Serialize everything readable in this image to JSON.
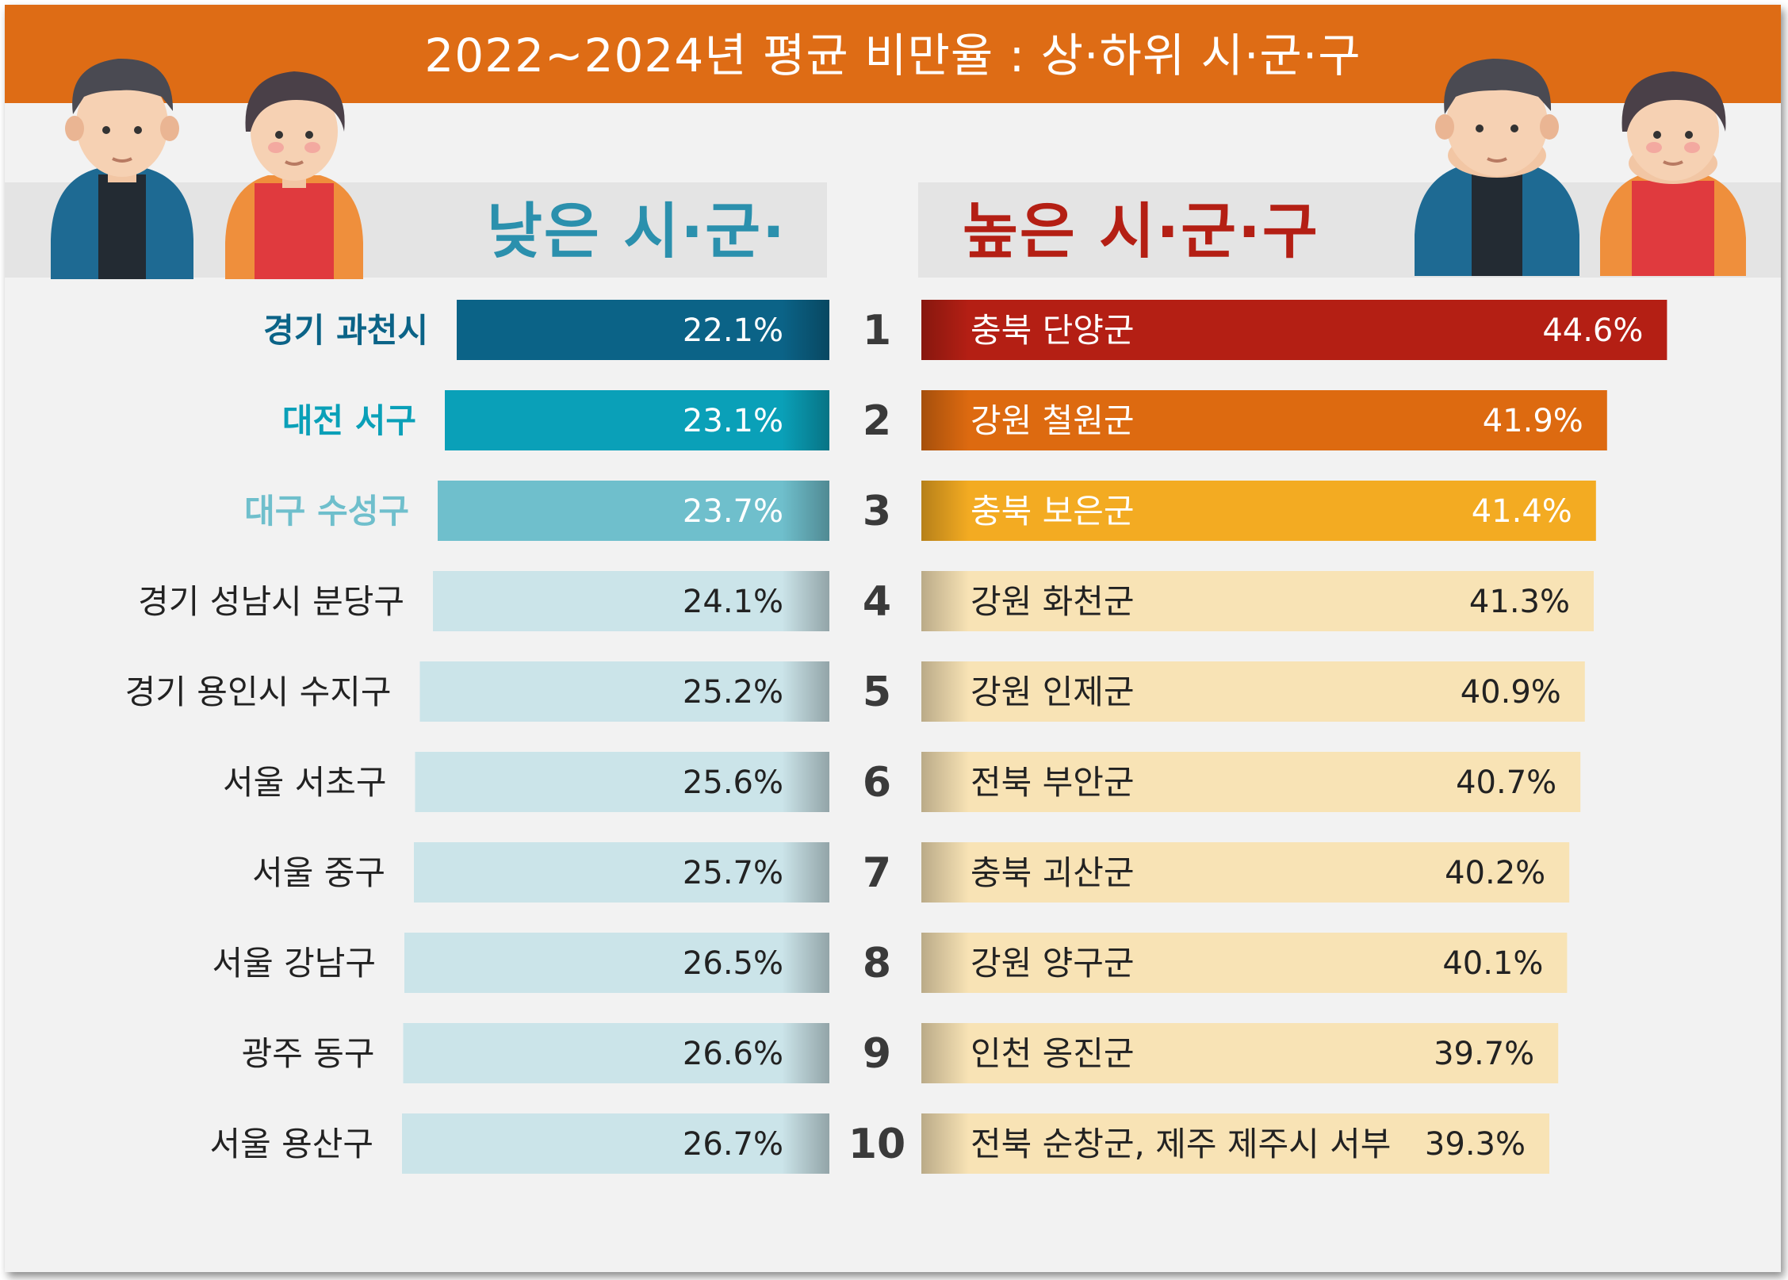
{
  "title": "2022~2024년 평균 비만율 : 상·하위 시·군·구",
  "labels": {
    "low": "낮은 시·군·구",
    "high": "높은 시·군·구"
  },
  "colors": {
    "title_bar": "#de6c15",
    "low_label": "#2b90ad",
    "high_label": "#b41f14",
    "low_bars": [
      "#0b6387",
      "#0aa0b8",
      "#6fbfcc",
      "#cbe4e9"
    ],
    "high_bars": [
      "#b41f14",
      "#dd6a10",
      "#f3ab22",
      "#f8e3b5"
    ]
  },
  "chart_data": [
    {
      "type": "bar",
      "orientation": "horizontal",
      "title": "낮은 시·군·구",
      "categories": [
        "경기 과천시",
        "대전 서구",
        "대구 수성구",
        "경기 성남시 분당구",
        "경기 용인시 수지구",
        "서울 서초구",
        "서울 중구",
        "서울 강남구",
        "광주 동구",
        "서울 용산구"
      ],
      "values": [
        22.1,
        23.1,
        23.7,
        24.1,
        25.2,
        25.6,
        25.7,
        26.5,
        26.6,
        26.7
      ],
      "value_labels": [
        "22.1%",
        "23.1%",
        "23.7%",
        "24.1%",
        "25.2%",
        "25.6%",
        "25.7%",
        "26.5%",
        "26.6%",
        "26.7%"
      ],
      "unit": "%"
    },
    {
      "type": "bar",
      "orientation": "horizontal",
      "title": "높은 시·군·구",
      "ranks": [
        "1",
        "2",
        "3",
        "4",
        "5",
        "6",
        "7",
        "8",
        "9",
        "10"
      ],
      "categories": [
        "충북 단양군",
        "강원 철원군",
        "충북 보은군",
        "강원 화천군",
        "강원 인제군",
        "전북 부안군",
        "충북 괴산군",
        "강원 양구군",
        "인천 옹진군",
        "전북 순창군, 제주 제주시 서부"
      ],
      "values": [
        44.6,
        41.9,
        41.4,
        41.3,
        40.9,
        40.7,
        40.2,
        40.1,
        39.7,
        39.3
      ],
      "value_labels": [
        "44.6%",
        "41.9%",
        "41.4%",
        "41.3%",
        "40.9%",
        "40.7%",
        "40.2%",
        "40.1%",
        "39.7%",
        "39.3%"
      ],
      "unit": "%"
    }
  ]
}
